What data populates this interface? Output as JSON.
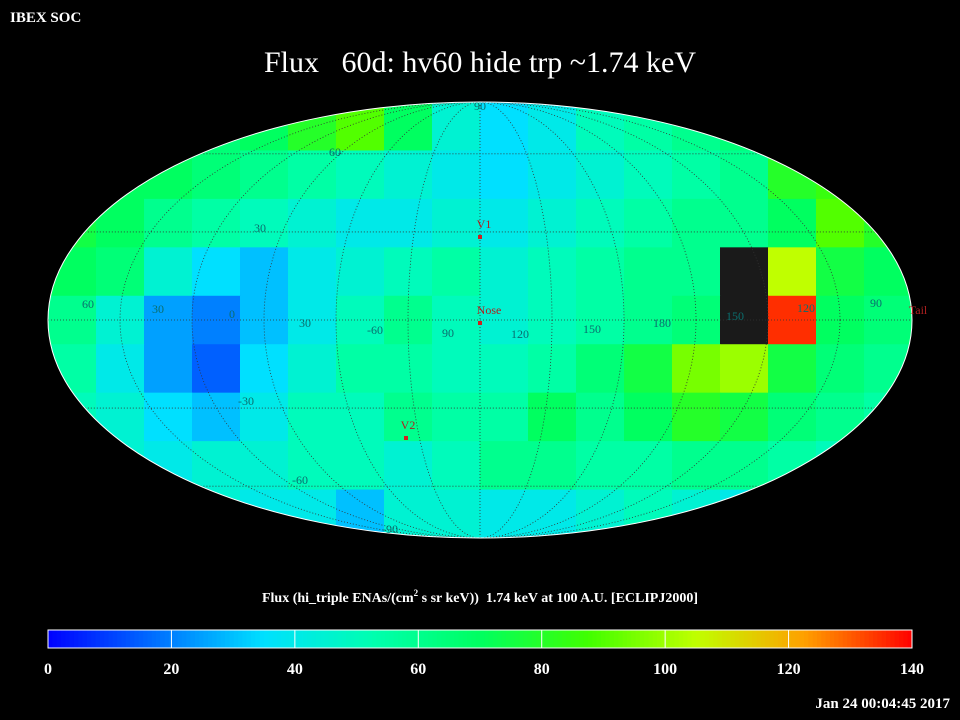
{
  "header": {
    "org": "IBEX SOC",
    "title": "Flux   60d: hv60 hide trp ~1.74 keV",
    "timestamp": "Jan 24 00:04:45 2017"
  },
  "sky_map": {
    "flux": [
      [
        60,
        60,
        60,
        65,
        70,
        80,
        90,
        70,
        45,
        35,
        40,
        50,
        55,
        60,
        65,
        70,
        70,
        70
      ],
      [
        65,
        70,
        70,
        65,
        60,
        55,
        50,
        45,
        40,
        35,
        40,
        45,
        50,
        55,
        60,
        80,
        85,
        75
      ],
      [
        75,
        70,
        60,
        55,
        50,
        45,
        40,
        40,
        45,
        40,
        45,
        50,
        55,
        60,
        60,
        70,
        90,
        80
      ],
      [
        70,
        65,
        45,
        35,
        30,
        40,
        45,
        50,
        55,
        45,
        50,
        55,
        60,
        60,
        null,
        105,
        75,
        70
      ],
      [
        60,
        45,
        25,
        20,
        30,
        40,
        50,
        60,
        50,
        45,
        50,
        55,
        60,
        65,
        null,
        135,
        70,
        65
      ],
      [
        55,
        40,
        25,
        15,
        35,
        45,
        55,
        55,
        50,
        50,
        55,
        65,
        75,
        95,
        100,
        75,
        65,
        60
      ],
      [
        50,
        45,
        35,
        30,
        40,
        50,
        50,
        60,
        55,
        55,
        70,
        60,
        70,
        80,
        75,
        65,
        60,
        55
      ],
      [
        50,
        45,
        40,
        45,
        45,
        50,
        50,
        45,
        50,
        60,
        60,
        55,
        55,
        60,
        60,
        55,
        50,
        50
      ],
      [
        45,
        45,
        40,
        45,
        40,
        40,
        30,
        45,
        45,
        40,
        40,
        45,
        50,
        45,
        40,
        45,
        40,
        45
      ]
    ],
    "graticule_labels": [
      "90",
      "60",
      "30",
      "60",
      "30",
      "0",
      "30",
      "-60",
      "90",
      "120",
      "150",
      "180",
      "150",
      "120",
      "90",
      "-30",
      "-60",
      "-90"
    ],
    "markers": [
      "V1",
      "Nose",
      "V2",
      "Tail"
    ],
    "no_data_color": "#1a1a1a"
  },
  "colorbar": {
    "label_parts": [
      "Flux (hi_triple ENAs/(cm",
      "2",
      " s sr keV))  1.74 keV at 100 A.U. [ECLIPJ2000]"
    ],
    "range": [
      0,
      140
    ],
    "ticks": [
      0,
      20,
      40,
      60,
      80,
      100,
      120,
      140
    ],
    "colors": [
      "#0000ff",
      "#0070ff",
      "#00e0ff",
      "#00ffb0",
      "#00ff60",
      "#40ff00",
      "#c0ff00",
      "#ffa000",
      "#ff0000"
    ]
  }
}
